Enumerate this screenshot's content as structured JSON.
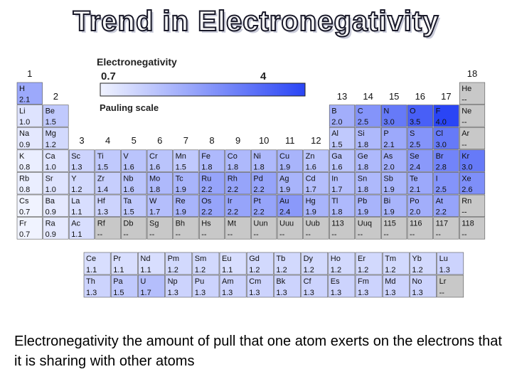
{
  "title": "Trend in Electronegativity",
  "caption": "Electronegativity the amount of pull that one atom exerts on the electrons that it is sharing with other atoms",
  "legend": {
    "title": "Electronegativity",
    "min_label": "0.7",
    "max_label": "4",
    "scale_name": "Pauling scale",
    "scale_min": 0.7,
    "scale_max": 4.0
  },
  "colors": {
    "scale_low": "#f0f3ff",
    "scale_high": "#2a45f5",
    "no_value": "#c8c8c8",
    "border": "#555555"
  },
  "group_labels": [
    "1",
    "2",
    "3",
    "4",
    "5",
    "6",
    "7",
    "8",
    "9",
    "10",
    "11",
    "12",
    "13",
    "14",
    "15",
    "16",
    "17",
    "18"
  ],
  "main_table": [
    [
      {
        "symbol": "H",
        "value": "2.1",
        "group": 1
      },
      {
        "symbol": "He",
        "value": "--",
        "group": 18
      }
    ],
    [
      {
        "symbol": "Li",
        "value": "1.0",
        "group": 1
      },
      {
        "symbol": "Be",
        "value": "1.5",
        "group": 2
      },
      {
        "symbol": "B",
        "value": "2.0",
        "group": 13
      },
      {
        "symbol": "C",
        "value": "2.5",
        "group": 14
      },
      {
        "symbol": "N",
        "value": "3.0",
        "group": 15
      },
      {
        "symbol": "O",
        "value": "3.5",
        "group": 16
      },
      {
        "symbol": "F",
        "value": "4.0",
        "group": 17
      },
      {
        "symbol": "Ne",
        "value": "--",
        "group": 18
      }
    ],
    [
      {
        "symbol": "Na",
        "value": "0.9",
        "group": 1
      },
      {
        "symbol": "Mg",
        "value": "1.2",
        "group": 2
      },
      {
        "symbol": "Al",
        "value": "1.5",
        "group": 13
      },
      {
        "symbol": "Si",
        "value": "1.8",
        "group": 14
      },
      {
        "symbol": "P",
        "value": "2.1",
        "group": 15
      },
      {
        "symbol": "S",
        "value": "2.5",
        "group": 16
      },
      {
        "symbol": "Cl",
        "value": "3.0",
        "group": 17
      },
      {
        "symbol": "Ar",
        "value": "--",
        "group": 18
      }
    ],
    [
      {
        "symbol": "K",
        "value": "0.8",
        "group": 1
      },
      {
        "symbol": "Ca",
        "value": "1.0",
        "group": 2
      },
      {
        "symbol": "Sc",
        "value": "1.3",
        "group": 3
      },
      {
        "symbol": "Ti",
        "value": "1.5",
        "group": 4
      },
      {
        "symbol": "V",
        "value": "1.6",
        "group": 5
      },
      {
        "symbol": "Cr",
        "value": "1.6",
        "group": 6
      },
      {
        "symbol": "Mn",
        "value": "1.5",
        "group": 7
      },
      {
        "symbol": "Fe",
        "value": "1.8",
        "group": 8
      },
      {
        "symbol": "Co",
        "value": "1.8",
        "group": 9
      },
      {
        "symbol": "Ni",
        "value": "1.8",
        "group": 10
      },
      {
        "symbol": "Cu",
        "value": "1.9",
        "group": 11
      },
      {
        "symbol": "Zn",
        "value": "1.6",
        "group": 12
      },
      {
        "symbol": "Ga",
        "value": "1.6",
        "group": 13
      },
      {
        "symbol": "Ge",
        "value": "1.8",
        "group": 14
      },
      {
        "symbol": "As",
        "value": "2.0",
        "group": 15
      },
      {
        "symbol": "Se",
        "value": "2.4",
        "group": 16
      },
      {
        "symbol": "Br",
        "value": "2.8",
        "group": 17
      },
      {
        "symbol": "Kr",
        "value": "3.0",
        "group": 18
      }
    ],
    [
      {
        "symbol": "Rb",
        "value": "0.8",
        "group": 1
      },
      {
        "symbol": "Sr",
        "value": "1.0",
        "group": 2
      },
      {
        "symbol": "Y",
        "value": "1.2",
        "group": 3
      },
      {
        "symbol": "Zr",
        "value": "1.4",
        "group": 4
      },
      {
        "symbol": "Nb",
        "value": "1.6",
        "group": 5
      },
      {
        "symbol": "Mo",
        "value": "1.8",
        "group": 6
      },
      {
        "symbol": "Tc",
        "value": "1.9",
        "group": 7
      },
      {
        "symbol": "Ru",
        "value": "2.2",
        "group": 8
      },
      {
        "symbol": "Rh",
        "value": "2.2",
        "group": 9
      },
      {
        "symbol": "Pd",
        "value": "2.2",
        "group": 10
      },
      {
        "symbol": "Ag",
        "value": "1.9",
        "group": 11
      },
      {
        "symbol": "Cd",
        "value": "1.7",
        "group": 12
      },
      {
        "symbol": "In",
        "value": "1.7",
        "group": 13
      },
      {
        "symbol": "Sn",
        "value": "1.8",
        "group": 14
      },
      {
        "symbol": "Sb",
        "value": "1.9",
        "group": 15
      },
      {
        "symbol": "Te",
        "value": "2.1",
        "group": 16
      },
      {
        "symbol": "I",
        "value": "2.5",
        "group": 17
      },
      {
        "symbol": "Xe",
        "value": "2.6",
        "group": 18
      }
    ],
    [
      {
        "symbol": "Cs",
        "value": "0.7",
        "group": 1
      },
      {
        "symbol": "Ba",
        "value": "0.9",
        "group": 2
      },
      {
        "symbol": "La",
        "value": "1.1",
        "group": 3
      },
      {
        "symbol": "Hf",
        "value": "1.3",
        "group": 4
      },
      {
        "symbol": "Ta",
        "value": "1.5",
        "group": 5
      },
      {
        "symbol": "W",
        "value": "1.7",
        "group": 6
      },
      {
        "symbol": "Re",
        "value": "1.9",
        "group": 7
      },
      {
        "symbol": "Os",
        "value": "2.2",
        "group": 8
      },
      {
        "symbol": "Ir",
        "value": "2.2",
        "group": 9
      },
      {
        "symbol": "Pt",
        "value": "2.2",
        "group": 10
      },
      {
        "symbol": "Au",
        "value": "2.4",
        "group": 11
      },
      {
        "symbol": "Hg",
        "value": "1.9",
        "group": 12
      },
      {
        "symbol": "Tl",
        "value": "1.8",
        "group": 13
      },
      {
        "symbol": "Pb",
        "value": "1.9",
        "group": 14
      },
      {
        "symbol": "Bi",
        "value": "1.9",
        "group": 15
      },
      {
        "symbol": "Po",
        "value": "2.0",
        "group": 16
      },
      {
        "symbol": "At",
        "value": "2.2",
        "group": 17
      },
      {
        "symbol": "Rn",
        "value": "--",
        "group": 18
      }
    ],
    [
      {
        "symbol": "Fr",
        "value": "0.7",
        "group": 1
      },
      {
        "symbol": "Ra",
        "value": "0.9",
        "group": 2
      },
      {
        "symbol": "Ac",
        "value": "1.1",
        "group": 3
      },
      {
        "symbol": "Rf",
        "value": "--",
        "group": 4
      },
      {
        "symbol": "Db",
        "value": "--",
        "group": 5
      },
      {
        "symbol": "Sg",
        "value": "--",
        "group": 6
      },
      {
        "symbol": "Bh",
        "value": "--",
        "group": 7
      },
      {
        "symbol": "Hs",
        "value": "--",
        "group": 8
      },
      {
        "symbol": "Mt",
        "value": "--",
        "group": 9
      },
      {
        "symbol": "Uun",
        "value": "--",
        "group": 10
      },
      {
        "symbol": "Uuu",
        "value": "--",
        "group": 11
      },
      {
        "symbol": "Uub",
        "value": "--",
        "group": 12
      },
      {
        "symbol": "113",
        "value": "--",
        "group": 13
      },
      {
        "symbol": "Uuq",
        "value": "--",
        "group": 14
      },
      {
        "symbol": "115",
        "value": "--",
        "group": 15
      },
      {
        "symbol": "116",
        "value": "--",
        "group": 16
      },
      {
        "symbol": "117",
        "value": "--",
        "group": 17
      },
      {
        "symbol": "118",
        "value": "--",
        "group": 18
      }
    ]
  ],
  "f_block": [
    [
      {
        "symbol": "Ce",
        "value": "1.1"
      },
      {
        "symbol": "Pr",
        "value": "1.1"
      },
      {
        "symbol": "Nd",
        "value": "1.1"
      },
      {
        "symbol": "Pm",
        "value": "1.2"
      },
      {
        "symbol": "Sm",
        "value": "1.2"
      },
      {
        "symbol": "Eu",
        "value": "1.1"
      },
      {
        "symbol": "Gd",
        "value": "1.2"
      },
      {
        "symbol": "Tb",
        "value": "1.2"
      },
      {
        "symbol": "Dy",
        "value": "1.2"
      },
      {
        "symbol": "Ho",
        "value": "1.2"
      },
      {
        "symbol": "Er",
        "value": "1.2"
      },
      {
        "symbol": "Tm",
        "value": "1.2"
      },
      {
        "symbol": "Yb",
        "value": "1.2"
      },
      {
        "symbol": "Lu",
        "value": "1.3"
      }
    ],
    [
      {
        "symbol": "Th",
        "value": "1.3"
      },
      {
        "symbol": "Pa",
        "value": "1.5"
      },
      {
        "symbol": "U",
        "value": "1.7"
      },
      {
        "symbol": "Np",
        "value": "1.3"
      },
      {
        "symbol": "Pu",
        "value": "1.3"
      },
      {
        "symbol": "Am",
        "value": "1.3"
      },
      {
        "symbol": "Cm",
        "value": "1.3"
      },
      {
        "symbol": "Bk",
        "value": "1.3"
      },
      {
        "symbol": "Cf",
        "value": "1.3"
      },
      {
        "symbol": "Es",
        "value": "1.3"
      },
      {
        "symbol": "Fm",
        "value": "1.3"
      },
      {
        "symbol": "Md",
        "value": "1.3"
      },
      {
        "symbol": "No",
        "value": "1.3"
      },
      {
        "symbol": "Lr",
        "value": "--"
      }
    ]
  ]
}
